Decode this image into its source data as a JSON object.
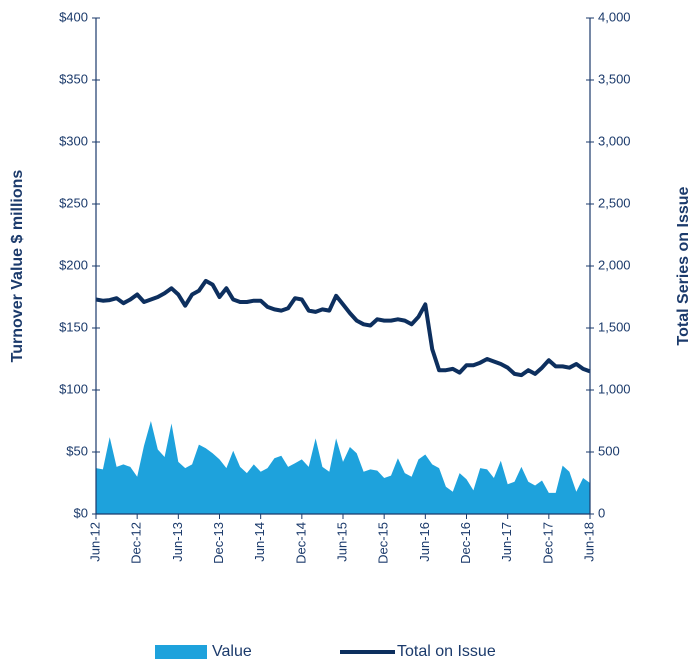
{
  "chart_data": {
    "type": "area-line",
    "y_label": "Turnover Value $ millions",
    "y2_label": "Total Series on Issue",
    "categories": [
      "Jun-12",
      null,
      null,
      null,
      null,
      null,
      "Dec-12",
      null,
      null,
      null,
      null,
      null,
      "Jun-13",
      null,
      null,
      null,
      null,
      null,
      "Dec-13",
      null,
      null,
      null,
      null,
      null,
      "Jun-14",
      null,
      null,
      null,
      null,
      null,
      "Dec-14",
      null,
      null,
      null,
      null,
      null,
      "Jun-15",
      null,
      null,
      null,
      null,
      null,
      "Dec-15",
      null,
      null,
      null,
      null,
      null,
      "Jun-16",
      null,
      null,
      null,
      null,
      null,
      "Dec-16",
      null,
      null,
      null,
      null,
      null,
      "Jun-17",
      null,
      null,
      null,
      null,
      null,
      "Dec-17",
      null,
      null,
      null,
      null,
      null,
      "Jun-18"
    ],
    "series": [
      {
        "name": "Value",
        "type": "area",
        "color": "#1ea2dc",
        "axis": "y",
        "values": [
          37,
          36,
          62,
          38,
          40,
          38,
          30,
          55,
          75,
          52,
          46,
          73,
          42,
          37,
          40,
          56,
          53,
          49,
          44,
          37,
          51,
          38,
          33,
          40,
          34,
          37,
          45,
          47,
          38,
          41,
          44,
          38,
          61,
          38,
          34,
          61,
          42,
          54,
          49,
          34,
          36,
          35,
          29,
          31,
          45,
          33,
          30,
          44,
          48,
          40,
          37,
          22,
          18,
          33,
          28,
          19,
          37,
          36,
          29,
          43,
          24,
          26,
          38,
          26,
          23,
          27,
          17,
          17,
          39,
          34,
          18,
          29,
          25
        ]
      },
      {
        "name": "Total on Issue",
        "type": "line",
        "color": "#0d2f5e",
        "axis": "y2",
        "values": [
          1730,
          1720,
          1725,
          1740,
          1700,
          1730,
          1770,
          1710,
          1730,
          1750,
          1780,
          1820,
          1770,
          1680,
          1770,
          1800,
          1880,
          1850,
          1750,
          1820,
          1730,
          1710,
          1710,
          1720,
          1720,
          1670,
          1650,
          1640,
          1660,
          1740,
          1730,
          1640,
          1630,
          1650,
          1640,
          1760,
          1690,
          1620,
          1560,
          1530,
          1520,
          1570,
          1560,
          1560,
          1570,
          1560,
          1530,
          1590,
          1690,
          1330,
          1160,
          1160,
          1170,
          1140,
          1200,
          1200,
          1220,
          1250,
          1230,
          1210,
          1180,
          1130,
          1120,
          1160,
          1130,
          1180,
          1240,
          1190,
          1190,
          1180,
          1210,
          1170,
          1150
        ]
      }
    ],
    "ylim": [
      0,
      400
    ],
    "yticks": [
      {
        "value": 0,
        "label": "$0"
      },
      {
        "value": 50,
        "label": "$50"
      },
      {
        "value": 100,
        "label": "$100"
      },
      {
        "value": 150,
        "label": "$150"
      },
      {
        "value": 200,
        "label": "$200"
      },
      {
        "value": 250,
        "label": "$250"
      },
      {
        "value": 300,
        "label": "$300"
      },
      {
        "value": 350,
        "label": "$350"
      },
      {
        "value": 400,
        "label": "$400"
      }
    ],
    "y2lim": [
      0,
      4000
    ],
    "y2ticks": [
      0,
      500,
      {
        "value": 1000,
        "label": "1,000"
      },
      {
        "value": 1500,
        "label": "1,500"
      },
      {
        "value": 2000,
        "label": "2,000"
      },
      {
        "value": 2500,
        "label": "2,500"
      },
      {
        "value": 3000,
        "label": "3,000"
      },
      {
        "value": 3500,
        "label": "3,500"
      },
      {
        "value": 4000,
        "label": "4,000"
      }
    ],
    "legend": "bottom"
  }
}
